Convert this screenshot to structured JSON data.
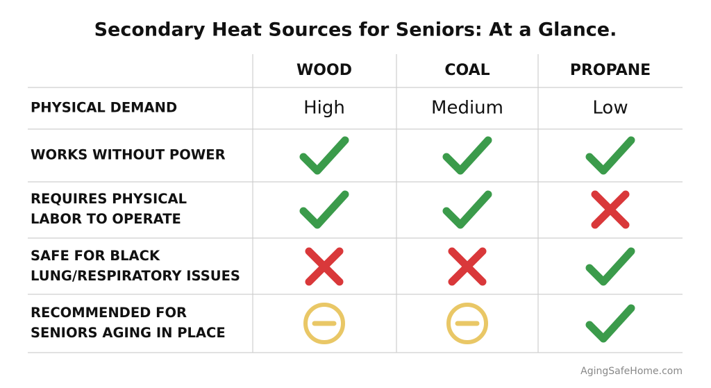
{
  "header": {
    "title": "Secondary Heat Sources for Seniors: At a Glance."
  },
  "table": {
    "columns": [
      "WOOD",
      "COAL",
      "PROPANE"
    ],
    "rows": [
      {
        "label": [
          "PHYSICAL DEMAND"
        ],
        "cells": [
          "High",
          "Medium",
          "Low"
        ]
      },
      {
        "label": [
          "WORKS WITHOUT POWER"
        ]
      },
      {
        "label": [
          "REQUIRES PHYSICAL",
          "LABOR TO OPERATE"
        ]
      },
      {
        "label": [
          "SAFE FOR BLACK",
          "LUNG/RESPIRATORY ISSUES"
        ]
      },
      {
        "label": [
          "RECOMMENDED FOR",
          "SENIORS AGING IN PLACE"
        ]
      }
    ]
  },
  "footer": {
    "credit": "AgingSafeHome.com"
  }
}
